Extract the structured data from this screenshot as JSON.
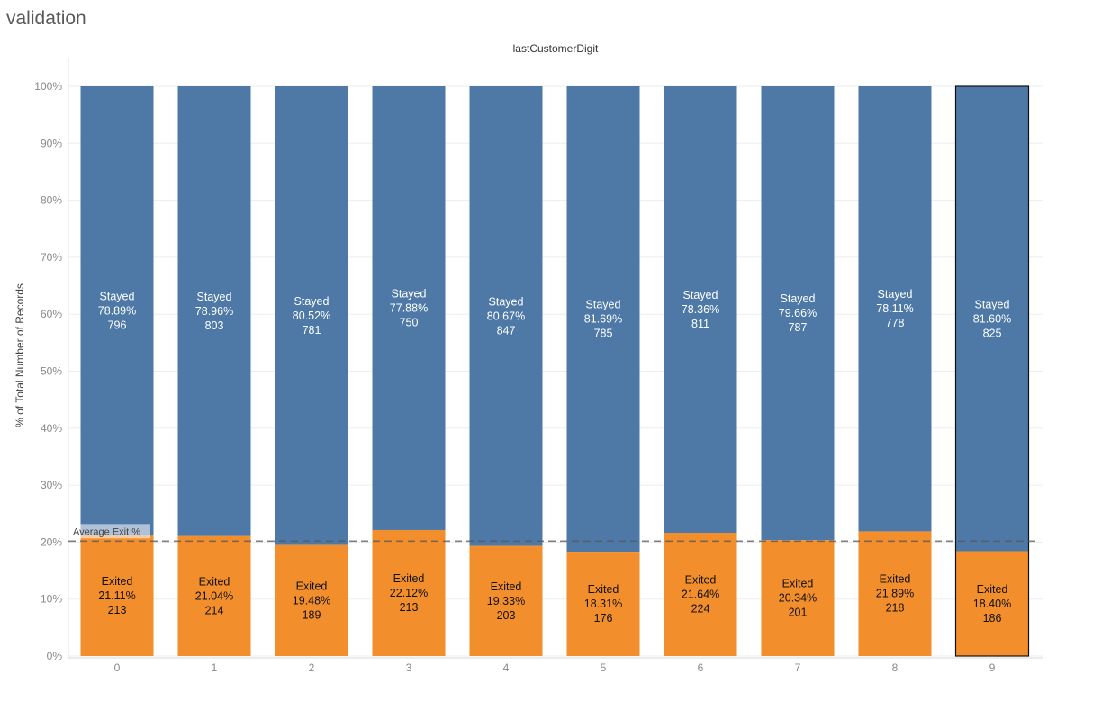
{
  "sheet": {
    "title": "validation"
  },
  "chart_data": {
    "type": "bar",
    "stacked": true,
    "normalized": true,
    "column_header": "lastCustomerDigit",
    "xlabel": "",
    "ylabel": "% of Total Number of Records",
    "ylim": [
      0,
      100
    ],
    "yticks": [
      "0%",
      "10%",
      "20%",
      "30%",
      "40%",
      "50%",
      "60%",
      "70%",
      "80%",
      "90%",
      "100%"
    ],
    "grid": true,
    "categories": [
      "0",
      "1",
      "2",
      "3",
      "4",
      "5",
      "6",
      "7",
      "8",
      "9"
    ],
    "series": [
      {
        "name": "Exited",
        "color": "#f28e2b",
        "percent_labels": [
          "21.11%",
          "21.04%",
          "19.48%",
          "22.12%",
          "19.33%",
          "18.31%",
          "21.64%",
          "20.34%",
          "21.89%",
          "18.40%"
        ],
        "values": [
          21.11,
          21.04,
          19.48,
          22.12,
          19.33,
          18.31,
          21.64,
          20.34,
          21.89,
          18.4
        ],
        "counts": [
          213,
          214,
          189,
          213,
          203,
          176,
          224,
          201,
          218,
          186
        ]
      },
      {
        "name": "Stayed",
        "color": "#4e79a7",
        "percent_labels": [
          "78.89%",
          "78.96%",
          "80.52%",
          "77.88%",
          "80.67%",
          "81.69%",
          "78.36%",
          "79.66%",
          "78.11%",
          "81.60%"
        ],
        "values": [
          78.89,
          78.96,
          80.52,
          77.88,
          80.67,
          81.69,
          78.36,
          79.66,
          78.11,
          81.6
        ],
        "counts": [
          796,
          803,
          781,
          750,
          847,
          785,
          811,
          787,
          778,
          825
        ]
      }
    ],
    "reference_line": {
      "label": "Average Exit %",
      "value": 20.17,
      "style": "dashed"
    },
    "highlighted_category": "9"
  }
}
